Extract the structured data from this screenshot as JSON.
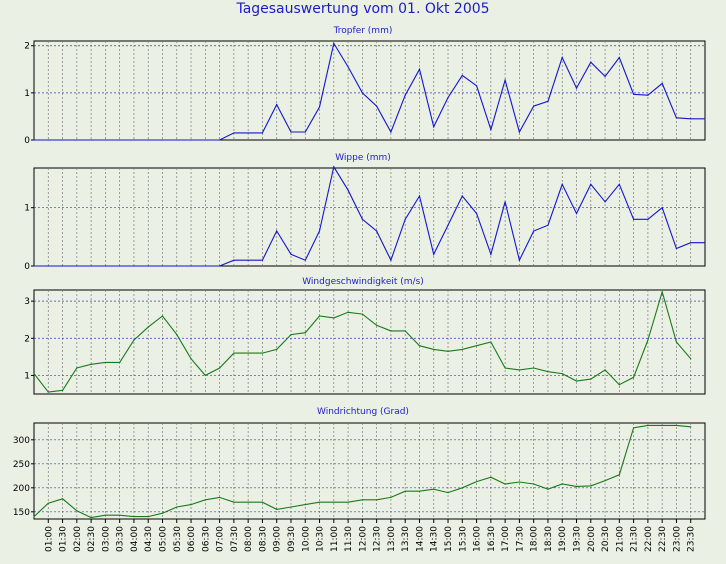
{
  "title": "Tagesauswertung vom 01. Okt 2005",
  "colors": {
    "series_blue": "#1515d0",
    "series_green": "#1a7a1a",
    "title_blue": "#1c1cc8",
    "background": "#eaf0e4"
  },
  "time_labels": [
    "01:00",
    "01:30",
    "02:00",
    "02:30",
    "03:00",
    "03:30",
    "04:00",
    "04:30",
    "05:00",
    "05:30",
    "06:00",
    "06:30",
    "07:00",
    "07:30",
    "08:00",
    "08:30",
    "09:00",
    "09:30",
    "10:00",
    "10:30",
    "11:00",
    "11:30",
    "12:00",
    "12:30",
    "13:00",
    "13:30",
    "14:00",
    "14:30",
    "15:00",
    "15:30",
    "16:00",
    "16:30",
    "17:00",
    "17:30",
    "18:00",
    "18:30",
    "19:00",
    "19:30",
    "20:00",
    "20:30",
    "21:00",
    "21:30",
    "22:00",
    "22:30",
    "23:00",
    "23:30"
  ],
  "chart_data": [
    {
      "type": "line",
      "title": "Tropfer (mm)",
      "ylim": [
        0,
        2.1
      ],
      "yticks": [
        0,
        1,
        2
      ],
      "grid": true,
      "color": "#1515d0",
      "x": [
        "00:30",
        "01:00",
        "01:30",
        "02:00",
        "02:30",
        "03:00",
        "03:30",
        "04:00",
        "04:30",
        "05:00",
        "05:30",
        "06:00",
        "06:30",
        "07:00",
        "07:30",
        "08:00",
        "08:30",
        "09:00",
        "09:30",
        "10:00",
        "10:30",
        "11:00",
        "11:30",
        "12:00",
        "12:30",
        "13:00",
        "13:30",
        "14:00",
        "14:30",
        "15:00",
        "15:30",
        "16:00",
        "16:30",
        "17:00",
        "17:30",
        "18:00",
        "18:30",
        "19:00",
        "19:30",
        "20:00",
        "20:30",
        "21:00",
        "21:30",
        "22:00",
        "22:30",
        "23:00",
        "23:30",
        "24:00"
      ],
      "values": [
        0,
        0,
        0,
        0,
        0,
        0,
        0,
        0,
        0,
        0,
        0,
        0,
        0,
        0,
        0.15,
        0.15,
        0.15,
        0.75,
        0.17,
        0.17,
        0.7,
        2.05,
        1.55,
        1.0,
        0.72,
        0.17,
        0.95,
        1.5,
        0.28,
        0.9,
        1.37,
        1.15,
        0.22,
        1.27,
        0.17,
        0.72,
        0.82,
        1.75,
        1.1,
        1.65,
        1.35,
        1.75,
        0.97,
        0.95,
        1.2,
        0.47,
        0.45,
        0.45
      ]
    },
    {
      "type": "line",
      "title": "Wippe (mm)",
      "ylim": [
        0,
        1.68
      ],
      "yticks": [
        0,
        1
      ],
      "grid": true,
      "color": "#1515d0",
      "x": [
        "00:30",
        "01:00",
        "01:30",
        "02:00",
        "02:30",
        "03:00",
        "03:30",
        "04:00",
        "04:30",
        "05:00",
        "05:30",
        "06:00",
        "06:30",
        "07:00",
        "07:30",
        "08:00",
        "08:30",
        "09:00",
        "09:30",
        "10:00",
        "10:30",
        "11:00",
        "11:30",
        "12:00",
        "12:30",
        "13:00",
        "13:30",
        "14:00",
        "14:30",
        "15:00",
        "15:30",
        "16:00",
        "16:30",
        "17:00",
        "17:30",
        "18:00",
        "18:30",
        "19:00",
        "19:30",
        "20:00",
        "20:30",
        "21:00",
        "21:30",
        "22:00",
        "22:30",
        "23:00",
        "23:30",
        "24:00"
      ],
      "values": [
        0,
        0,
        0,
        0,
        0,
        0,
        0,
        0,
        0,
        0,
        0,
        0,
        0,
        0,
        0.1,
        0.1,
        0.1,
        0.6,
        0.2,
        0.1,
        0.6,
        1.7,
        1.3,
        0.8,
        0.6,
        0.1,
        0.8,
        1.2,
        0.2,
        0.7,
        1.2,
        0.9,
        0.2,
        1.1,
        0.1,
        0.6,
        0.7,
        1.4,
        0.9,
        1.4,
        1.1,
        1.4,
        0.8,
        0.8,
        1.0,
        0.3,
        0.4,
        0.4
      ]
    },
    {
      "type": "line",
      "title": "Windgeschwindigkeit (m/s)",
      "ylim": [
        0.5,
        3.3
      ],
      "yticks": [
        1,
        2,
        3
      ],
      "grid": true,
      "color": "#1a7a1a",
      "x": [
        "00:30",
        "01:00",
        "01:30",
        "02:00",
        "02:30",
        "03:00",
        "03:30",
        "04:00",
        "04:30",
        "05:00",
        "05:30",
        "06:00",
        "06:30",
        "07:00",
        "07:30",
        "08:00",
        "08:30",
        "09:00",
        "09:30",
        "10:00",
        "10:30",
        "11:00",
        "11:30",
        "12:00",
        "12:30",
        "13:00",
        "13:30",
        "14:00",
        "14:30",
        "15:00",
        "15:30",
        "16:00",
        "16:30",
        "17:00",
        "17:30",
        "18:00",
        "18:30",
        "19:00",
        "19:30",
        "20:00",
        "20:30",
        "21:00",
        "21:30",
        "22:00",
        "22:30",
        "23:00",
        "23:30"
      ],
      "values": [
        1.05,
        0.55,
        0.6,
        1.2,
        1.3,
        1.35,
        1.35,
        1.95,
        2.3,
        2.6,
        2.1,
        1.45,
        1.0,
        1.2,
        1.6,
        1.6,
        1.6,
        1.7,
        2.1,
        2.15,
        2.6,
        2.55,
        2.7,
        2.65,
        2.35,
        2.2,
        2.2,
        1.8,
        1.7,
        1.65,
        1.7,
        1.8,
        1.9,
        1.2,
        1.15,
        1.2,
        1.1,
        1.05,
        0.85,
        0.9,
        1.15,
        0.75,
        0.95,
        1.95,
        3.25,
        1.9,
        1.45
      ]
    },
    {
      "type": "line",
      "title": "Windrichtung (Grad)",
      "ylim": [
        135,
        335
      ],
      "yticks": [
        150,
        200,
        250,
        300
      ],
      "grid": true,
      "color": "#1a7a1a",
      "x": [
        "00:30",
        "01:00",
        "01:30",
        "02:00",
        "02:30",
        "03:00",
        "03:30",
        "04:00",
        "04:30",
        "05:00",
        "05:30",
        "06:00",
        "06:30",
        "07:00",
        "07:30",
        "08:00",
        "08:30",
        "09:00",
        "09:30",
        "10:00",
        "10:30",
        "11:00",
        "11:30",
        "12:00",
        "12:30",
        "13:00",
        "13:30",
        "14:00",
        "14:30",
        "15:00",
        "15:30",
        "16:00",
        "16:30",
        "17:00",
        "17:30",
        "18:00",
        "18:30",
        "19:00",
        "19:30",
        "20:00",
        "20:30",
        "21:00",
        "21:30",
        "22:00",
        "22:30",
        "23:00",
        "23:30"
      ],
      "values": [
        140,
        168,
        177,
        152,
        138,
        143,
        143,
        140,
        140,
        147,
        160,
        165,
        175,
        180,
        170,
        170,
        170,
        155,
        160,
        165,
        170,
        170,
        170,
        175,
        175,
        180,
        193,
        193,
        197,
        190,
        200,
        213,
        222,
        208,
        212,
        208,
        197,
        208,
        203,
        204,
        215,
        227,
        325,
        330,
        330,
        330,
        327
      ]
    }
  ]
}
